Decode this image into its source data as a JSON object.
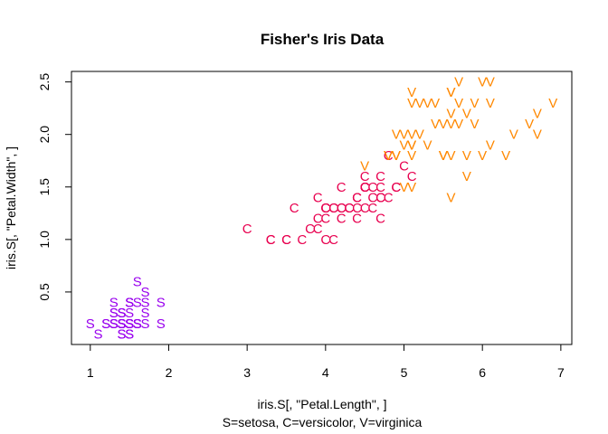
{
  "chart_data": {
    "type": "scatter",
    "title": "Fisher's Iris Data",
    "xlabel": "iris.S[, \"Petal.Length\", ]",
    "ylabel": "iris.S[, \"Petal.Width\", ]",
    "subtitle": "S=setosa,  C=versicolor,  V=virginica",
    "xlim": [
      0.76,
      7.14
    ],
    "ylim": [
      0.0,
      2.6
    ],
    "xticks": [
      "1",
      "2",
      "3",
      "4",
      "5",
      "6",
      "7"
    ],
    "yticks": [
      "0.5",
      "1.0",
      "1.5",
      "2.0",
      "2.5"
    ],
    "grid": false,
    "series": [
      {
        "name": "setosa",
        "symbol": "S",
        "color": "#9900ee",
        "points": [
          [
            1.4,
            0.2
          ],
          [
            1.4,
            0.2
          ],
          [
            1.3,
            0.2
          ],
          [
            1.5,
            0.2
          ],
          [
            1.4,
            0.2
          ],
          [
            1.7,
            0.4
          ],
          [
            1.4,
            0.3
          ],
          [
            1.5,
            0.2
          ],
          [
            1.4,
            0.2
          ],
          [
            1.5,
            0.1
          ],
          [
            1.5,
            0.2
          ],
          [
            1.6,
            0.2
          ],
          [
            1.4,
            0.1
          ],
          [
            1.1,
            0.1
          ],
          [
            1.2,
            0.2
          ],
          [
            1.5,
            0.4
          ],
          [
            1.3,
            0.4
          ],
          [
            1.4,
            0.3
          ],
          [
            1.7,
            0.3
          ],
          [
            1.5,
            0.3
          ],
          [
            1.7,
            0.2
          ],
          [
            1.5,
            0.4
          ],
          [
            1.0,
            0.2
          ],
          [
            1.7,
            0.5
          ],
          [
            1.9,
            0.2
          ],
          [
            1.6,
            0.2
          ],
          [
            1.6,
            0.4
          ],
          [
            1.5,
            0.2
          ],
          [
            1.4,
            0.2
          ],
          [
            1.6,
            0.2
          ],
          [
            1.6,
            0.2
          ],
          [
            1.5,
            0.4
          ],
          [
            1.5,
            0.1
          ],
          [
            1.4,
            0.2
          ],
          [
            1.5,
            0.2
          ],
          [
            1.2,
            0.2
          ],
          [
            1.3,
            0.2
          ],
          [
            1.4,
            0.1
          ],
          [
            1.3,
            0.2
          ],
          [
            1.5,
            0.2
          ],
          [
            1.3,
            0.3
          ],
          [
            1.3,
            0.3
          ],
          [
            1.3,
            0.2
          ],
          [
            1.6,
            0.6
          ],
          [
            1.9,
            0.4
          ],
          [
            1.4,
            0.3
          ],
          [
            1.6,
            0.2
          ],
          [
            1.4,
            0.2
          ],
          [
            1.5,
            0.2
          ],
          [
            1.4,
            0.2
          ]
        ]
      },
      {
        "name": "versicolor",
        "symbol": "C",
        "color": "#e8004f",
        "points": [
          [
            4.7,
            1.4
          ],
          [
            4.5,
            1.5
          ],
          [
            4.9,
            1.5
          ],
          [
            4.0,
            1.3
          ],
          [
            4.6,
            1.5
          ],
          [
            4.5,
            1.3
          ],
          [
            4.7,
            1.6
          ],
          [
            3.3,
            1.0
          ],
          [
            4.6,
            1.3
          ],
          [
            3.9,
            1.4
          ],
          [
            3.5,
            1.0
          ],
          [
            4.2,
            1.5
          ],
          [
            4.0,
            1.0
          ],
          [
            4.7,
            1.4
          ],
          [
            3.6,
            1.3
          ],
          [
            4.4,
            1.4
          ],
          [
            4.5,
            1.5
          ],
          [
            4.1,
            1.0
          ],
          [
            4.5,
            1.5
          ],
          [
            3.9,
            1.1
          ],
          [
            4.8,
            1.8
          ],
          [
            4.0,
            1.3
          ],
          [
            4.9,
            1.5
          ],
          [
            4.7,
            1.2
          ],
          [
            4.3,
            1.3
          ],
          [
            4.4,
            1.4
          ],
          [
            4.8,
            1.4
          ],
          [
            5.0,
            1.7
          ],
          [
            4.5,
            1.5
          ],
          [
            3.5,
            1.0
          ],
          [
            3.8,
            1.1
          ],
          [
            3.7,
            1.0
          ],
          [
            3.9,
            1.2
          ],
          [
            5.1,
            1.6
          ],
          [
            4.5,
            1.5
          ],
          [
            4.5,
            1.6
          ],
          [
            4.7,
            1.5
          ],
          [
            4.4,
            1.3
          ],
          [
            4.1,
            1.3
          ],
          [
            4.0,
            1.3
          ],
          [
            4.4,
            1.2
          ],
          [
            4.6,
            1.4
          ],
          [
            4.0,
            1.2
          ],
          [
            3.3,
            1.0
          ],
          [
            4.2,
            1.3
          ],
          [
            4.2,
            1.2
          ],
          [
            4.2,
            1.3
          ],
          [
            4.3,
            1.3
          ],
          [
            3.0,
            1.1
          ],
          [
            4.1,
            1.3
          ]
        ]
      },
      {
        "name": "virginica",
        "symbol": "V",
        "color": "#ff8800",
        "points": [
          [
            6.0,
            2.5
          ],
          [
            5.1,
            1.9
          ],
          [
            5.9,
            2.1
          ],
          [
            5.6,
            1.8
          ],
          [
            5.8,
            2.2
          ],
          [
            6.6,
            2.1
          ],
          [
            4.5,
            1.7
          ],
          [
            6.3,
            1.8
          ],
          [
            5.8,
            1.8
          ],
          [
            6.1,
            2.5
          ],
          [
            5.1,
            2.0
          ],
          [
            5.3,
            1.9
          ],
          [
            5.5,
            2.1
          ],
          [
            5.0,
            2.0
          ],
          [
            5.1,
            2.4
          ],
          [
            5.3,
            2.3
          ],
          [
            5.5,
            1.8
          ],
          [
            6.7,
            2.2
          ],
          [
            6.9,
            2.3
          ],
          [
            5.0,
            1.5
          ],
          [
            5.7,
            2.3
          ],
          [
            4.9,
            2.0
          ],
          [
            6.7,
            2.0
          ],
          [
            4.9,
            1.8
          ],
          [
            5.7,
            2.1
          ],
          [
            6.0,
            1.8
          ],
          [
            4.8,
            1.8
          ],
          [
            4.9,
            1.8
          ],
          [
            5.6,
            2.1
          ],
          [
            5.8,
            1.6
          ],
          [
            6.1,
            1.9
          ],
          [
            6.4,
            2.0
          ],
          [
            5.6,
            2.2
          ],
          [
            5.1,
            1.5
          ],
          [
            5.6,
            1.4
          ],
          [
            6.1,
            2.3
          ],
          [
            5.6,
            2.4
          ],
          [
            5.5,
            1.8
          ],
          [
            4.8,
            1.8
          ],
          [
            5.4,
            2.1
          ],
          [
            5.6,
            2.4
          ],
          [
            5.1,
            2.3
          ],
          [
            5.1,
            1.9
          ],
          [
            5.9,
            2.3
          ],
          [
            5.7,
            2.5
          ],
          [
            5.2,
            2.3
          ],
          [
            5.0,
            1.9
          ],
          [
            5.2,
            2.0
          ],
          [
            5.4,
            2.3
          ],
          [
            5.1,
            1.8
          ]
        ]
      }
    ]
  }
}
